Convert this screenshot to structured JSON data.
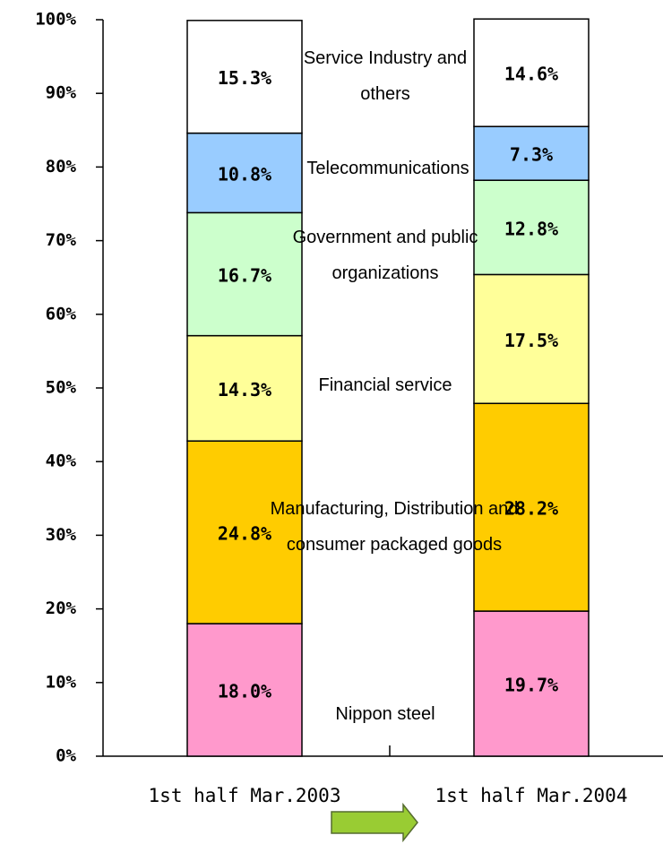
{
  "chart_data": {
    "type": "stacked_bar",
    "categories": [
      "1st half Mar.2003",
      "1st half Mar.2004"
    ],
    "series": [
      {
        "name": "Nippon steel",
        "color": "#ff99cc",
        "values": [
          18.0,
          19.7
        ],
        "value_labels": [
          "18.0%",
          "19.7%"
        ]
      },
      {
        "name": "Manufacturing, Distribution and consumer packaged goods",
        "color": "#ffcc00",
        "values": [
          24.8,
          28.2
        ],
        "value_labels": [
          "24.8%",
          "28.2%"
        ]
      },
      {
        "name": "Financial service",
        "color": "#ffff99",
        "values": [
          14.3,
          17.5
        ],
        "value_labels": [
          "14.3%",
          "17.5%"
        ]
      },
      {
        "name": "Government and public organizations",
        "color": "#ccffcc",
        "values": [
          16.7,
          12.8
        ],
        "value_labels": [
          "16.7%",
          "12.8%"
        ]
      },
      {
        "name": "Telecommunications",
        "color": "#99ccff",
        "values": [
          10.8,
          7.3
        ],
        "value_labels": [
          "10.8%",
          "7.3%"
        ]
      },
      {
        "name": "Service Industry and others",
        "color": "#ffffff",
        "values": [
          15.3,
          14.6
        ],
        "value_labels": [
          "15.3%",
          "14.6%"
        ]
      }
    ],
    "ylim": [
      0,
      100
    ],
    "yticks": [
      {
        "value": 0,
        "label": "0%"
      },
      {
        "value": 10,
        "label": "10%"
      },
      {
        "value": 20,
        "label": "20%"
      },
      {
        "value": 30,
        "label": "30%"
      },
      {
        "value": 40,
        "label": "40%"
      },
      {
        "value": 50,
        "label": "50%"
      },
      {
        "value": 60,
        "label": "60%"
      },
      {
        "value": 70,
        "label": "70%"
      },
      {
        "value": 80,
        "label": "80%"
      },
      {
        "value": 90,
        "label": "90%"
      },
      {
        "value": 100,
        "label": "100%"
      }
    ]
  }
}
